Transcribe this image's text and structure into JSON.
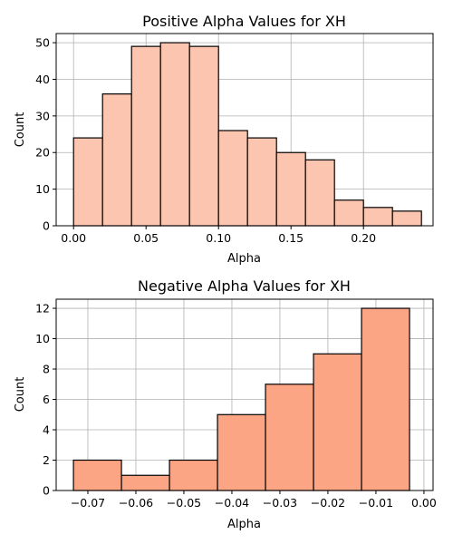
{
  "chart_data": [
    {
      "type": "bar",
      "title": "Positive Alpha Values for XH",
      "xlabel": "Alpha",
      "ylabel": "Count",
      "bins": [
        {
          "x0": 0.0,
          "x1": 0.02,
          "count": 24
        },
        {
          "x0": 0.02,
          "x1": 0.04,
          "count": 36
        },
        {
          "x0": 0.04,
          "x1": 0.06,
          "count": 49
        },
        {
          "x0": 0.06,
          "x1": 0.08,
          "count": 50
        },
        {
          "x0": 0.08,
          "x1": 0.1,
          "count": 49
        },
        {
          "x0": 0.1,
          "x1": 0.12,
          "count": 26
        },
        {
          "x0": 0.12,
          "x1": 0.14,
          "count": 24
        },
        {
          "x0": 0.14,
          "x1": 0.16,
          "count": 20
        },
        {
          "x0": 0.16,
          "x1": 0.18,
          "count": 18
        },
        {
          "x0": 0.18,
          "x1": 0.2,
          "count": 7
        },
        {
          "x0": 0.2,
          "x1": 0.22,
          "count": 5
        },
        {
          "x0": 0.22,
          "x1": 0.24,
          "count": 4
        }
      ],
      "xlim": [
        -0.012,
        0.248
      ],
      "ylim": [
        0,
        52.5
      ],
      "xticks": [
        0.0,
        0.05,
        0.1,
        0.15,
        0.2
      ],
      "xtick_labels": [
        "0.00",
        "0.05",
        "0.10",
        "0.15",
        "0.20"
      ],
      "yticks": [
        0,
        10,
        20,
        30,
        40,
        50
      ],
      "ytick_labels": [
        "0",
        "10",
        "20",
        "30",
        "40",
        "50"
      ],
      "grid": true,
      "bar_color": "#fcc5b0",
      "edge_color": "#000000"
    },
    {
      "type": "bar",
      "title": "Negative Alpha Values for XH",
      "xlabel": "Alpha",
      "ylabel": "Count",
      "bins": [
        {
          "x0": -0.073,
          "x1": -0.063,
          "count": 2
        },
        {
          "x0": -0.063,
          "x1": -0.053,
          "count": 1
        },
        {
          "x0": -0.053,
          "x1": -0.043,
          "count": 2
        },
        {
          "x0": -0.043,
          "x1": -0.033,
          "count": 5
        },
        {
          "x0": -0.033,
          "x1": -0.023,
          "count": 7
        },
        {
          "x0": -0.023,
          "x1": -0.013,
          "count": 9
        },
        {
          "x0": -0.013,
          "x1": -0.003,
          "count": 12
        }
      ],
      "xlim": [
        -0.0766,
        0.0019
      ],
      "ylim": [
        0,
        12.6
      ],
      "xticks": [
        -0.07,
        -0.06,
        -0.05,
        -0.04,
        -0.03,
        -0.02,
        -0.01,
        0.0
      ],
      "xtick_labels": [
        "−0.07",
        "−0.06",
        "−0.05",
        "−0.04",
        "−0.03",
        "−0.02",
        "−0.01",
        "0.00"
      ],
      "yticks": [
        0,
        2,
        4,
        6,
        8,
        10,
        12
      ],
      "ytick_labels": [
        "0",
        "2",
        "4",
        "6",
        "8",
        "10",
        "12"
      ],
      "grid": true,
      "bar_color": "#fca585",
      "edge_color": "#000000"
    }
  ]
}
